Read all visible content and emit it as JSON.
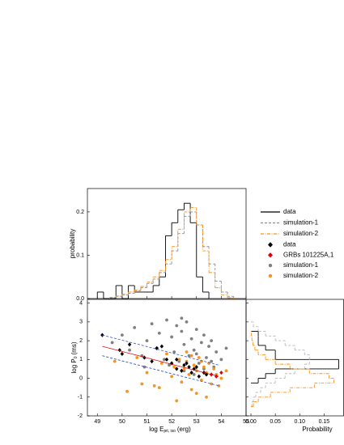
{
  "chart_data": [
    {
      "type": "histogram",
      "orientation": "vertical",
      "y_label": "probability",
      "xlim": [
        48.6,
        55
      ],
      "ylim": [
        0,
        0.254
      ],
      "yticks": [
        {
          "value": 0,
          "label": "0.0"
        },
        0.1,
        0.2
      ],
      "series": [
        {
          "name": "data",
          "color": "#000000",
          "dash": "solid",
          "bins": [
            49.0,
            49.25,
            49.5,
            49.75,
            50.0,
            50.25,
            50.5,
            50.75,
            51.0,
            51.25,
            51.5,
            51.75,
            52.0,
            52.25,
            52.5,
            52.75,
            53.0,
            53.25,
            53.5
          ],
          "values": [
            0.015,
            0,
            0,
            0.03,
            0,
            0.03,
            0.015,
            0.015,
            0.015,
            0.03,
            0.05,
            0.145,
            0.175,
            0.205,
            0.22,
            0.175,
            0.05,
            0.015
          ]
        },
        {
          "name": "simulation-1",
          "color": "#8c8c9c",
          "dash": "dashed",
          "bins": [
            49.5,
            49.75,
            50.0,
            50.25,
            50.5,
            50.75,
            51.0,
            51.25,
            51.5,
            51.75,
            52.0,
            52.25,
            52.5,
            52.75,
            53.0,
            53.25,
            53.5,
            53.75,
            54.0,
            54.25,
            54.5
          ],
          "values": [
            0.002,
            0.005,
            0.008,
            0.012,
            0.018,
            0.025,
            0.035,
            0.045,
            0.06,
            0.08,
            0.11,
            0.15,
            0.19,
            0.2,
            0.17,
            0.12,
            0.08,
            0.04,
            0.015,
            0.005
          ]
        },
        {
          "name": "simulation-2",
          "color": "#f7931e",
          "dash": "dashdot",
          "bins": [
            49.5,
            49.75,
            50.0,
            50.25,
            50.5,
            50.75,
            51.0,
            51.25,
            51.5,
            51.75,
            52.0,
            52.25,
            52.5,
            52.75,
            53.0,
            53.25,
            53.5,
            53.75,
            54.0,
            54.25,
            54.5
          ],
          "values": [
            0.003,
            0.006,
            0.01,
            0.015,
            0.02,
            0.028,
            0.038,
            0.05,
            0.065,
            0.09,
            0.12,
            0.16,
            0.2,
            0.21,
            0.17,
            0.11,
            0.06,
            0.025,
            0.008,
            0.002
          ]
        }
      ]
    },
    {
      "type": "scatter",
      "x_label": {
        "main": "log E",
        "sub": "jet, iso",
        "unit": "(erg)"
      },
      "y_label": {
        "main": "log P",
        "sub": "0",
        "unit": "(ms)"
      },
      "xlim": [
        48.6,
        55
      ],
      "ylim": [
        -2,
        4.2
      ],
      "xticks": [
        49,
        50,
        51,
        52,
        53,
        54,
        55
      ],
      "yticks": [
        -2,
        -1,
        0,
        1,
        2,
        3,
        4
      ],
      "series": [
        {
          "name": "simulation-1",
          "color": "#808080",
          "marker": "circle",
          "x": [
            49.6,
            50.0,
            50.3,
            50.5,
            50.8,
            51.0,
            51.2,
            51.4,
            51.5,
            51.7,
            51.8,
            52.0,
            52.1,
            52.2,
            52.3,
            52.4,
            52.5,
            52.6,
            52.7,
            52.8,
            52.9,
            53.0,
            53.1,
            53.2,
            53.3,
            53.4,
            53.5,
            53.6,
            53.7,
            53.8,
            54.0,
            54.2,
            52.5,
            52.9,
            53.3,
            51.9,
            52.4,
            53.0,
            53.6,
            50.9
          ],
          "values": [
            1.9,
            2.3,
            1.5,
            2.7,
            1.2,
            2.0,
            2.9,
            1.6,
            2.4,
            1.0,
            3.1,
            2.2,
            1.4,
            2.8,
            0.9,
            2.5,
            1.8,
            3.0,
            1.2,
            2.1,
            1.5,
            2.6,
            0.8,
            1.9,
            2.3,
            1.1,
            1.7,
            2.0,
            0.6,
            1.4,
            1.0,
            1.6,
            0.4,
            0.2,
            0.5,
            0.7,
            3.2,
            1.3,
            0.9,
            0.6
          ]
        },
        {
          "name": "simulation-2",
          "color": "#f7931e",
          "marker": "circle",
          "x": [
            49.7,
            50.2,
            50.6,
            51.0,
            51.3,
            51.6,
            51.8,
            52.0,
            52.1,
            52.3,
            52.4,
            52.5,
            52.6,
            52.7,
            52.8,
            52.9,
            53.0,
            53.1,
            53.2,
            53.3,
            53.4,
            53.5,
            53.6,
            53.7,
            53.8,
            54.0,
            54.2,
            52.2,
            52.6,
            53.0,
            53.4,
            51.5,
            50.8,
            52.8,
            53.2,
            53.9
          ],
          "values": [
            0.9,
            -0.7,
            1.1,
            0.3,
            -0.4,
            0.8,
            1.3,
            0.1,
            0.6,
            1.0,
            -0.2,
            0.5,
            0.9,
            0.2,
            -0.6,
            0.7,
            0.4,
            1.1,
            -0.1,
            0.6,
            0.3,
            0.8,
            -0.3,
            0.5,
            0.2,
            0.0,
            0.4,
            -1.2,
            1.4,
            -0.8,
            -1.0,
            -0.5,
            -0.3,
            1.2,
            0.9,
            -0.4
          ]
        },
        {
          "name": "data",
          "color": "#000000",
          "marker": "diamond",
          "x": [
            49.2,
            49.9,
            50.0,
            50.3,
            50.9,
            51.2,
            51.6,
            51.8,
            52.0,
            52.2,
            52.4,
            52.5,
            52.7,
            52.8,
            52.9,
            53.0,
            53.1,
            53.3,
            52.6,
            52.2,
            53.4,
            51.4
          ],
          "values": [
            2.3,
            1.5,
            1.3,
            1.8,
            1.1,
            0.9,
            1.7,
            1.0,
            0.8,
            0.5,
            0.4,
            0.7,
            0.6,
            0.3,
            0.5,
            0.6,
            0.1,
            0.3,
            0.8,
            1.0,
            0.2,
            1.6
          ]
        },
        {
          "name": "GRBs 101225A,1",
          "color": "#e00000",
          "marker": "diamond",
          "x": [
            53.6,
            53.8,
            54.0
          ],
          "values": [
            0.2,
            0.1,
            0.3
          ]
        }
      ],
      "lines": [
        {
          "color": "#e00000",
          "dash": "solid",
          "x": [
            49.2,
            53.9
          ],
          "y": [
            1.7,
            0.1
          ]
        },
        {
          "color": "#3050c0",
          "dash": "dashed",
          "x": [
            49.2,
            53.9
          ],
          "y": [
            2.3,
            0.7
          ]
        },
        {
          "color": "#3050c0",
          "dash": "dashed",
          "x": [
            49.2,
            53.9
          ],
          "y": [
            1.2,
            -0.4
          ]
        }
      ]
    },
    {
      "type": "histogram",
      "orientation": "horizontal",
      "x_label": "Probability",
      "xlim": [
        -0.01,
        0.19
      ],
      "ylim": [
        -2,
        4.2
      ],
      "xticks": [
        {
          "value": 0,
          "label": "0.00"
        },
        0.05,
        {
          "value": 0.1,
          "label": "0.10"
        },
        0.15
      ],
      "series": [
        {
          "name": "data",
          "color": "#000000",
          "dash": "solid",
          "bins": [
            -0.25,
            0,
            0.25,
            0.5,
            0.75,
            1.0,
            1.25,
            1.5,
            1.75,
            2.0,
            2.25,
            2.5
          ],
          "values": [
            0.015,
            0.03,
            0.05,
            0.18,
            0.18,
            0.05,
            0.05,
            0.03,
            0.015,
            0.015,
            0.015
          ]
        },
        {
          "name": "simulation-1",
          "color": "#b8b8c4",
          "dash": "dashed",
          "bins": [
            -1.5,
            -1.25,
            -1.0,
            -0.75,
            -0.5,
            -0.25,
            0,
            0.25,
            0.5,
            0.75,
            1.0,
            1.25,
            1.5,
            1.75,
            2.0,
            2.25,
            2.5,
            2.75,
            3.0
          ],
          "values": [
            0.002,
            0.005,
            0.01,
            0.02,
            0.03,
            0.05,
            0.07,
            0.09,
            0.11,
            0.12,
            0.12,
            0.11,
            0.09,
            0.07,
            0.05,
            0.03,
            0.015,
            0.005
          ]
        },
        {
          "name": "simulation-2",
          "color": "#f7931e",
          "dash": "dashdot",
          "bins": [
            -1.5,
            -1.25,
            -1.0,
            -0.75,
            -0.5,
            -0.25,
            0,
            0.25,
            0.5,
            0.75,
            1.0,
            1.25,
            1.5,
            1.75,
            2.0,
            2.25,
            2.5
          ],
          "values": [
            0.005,
            0.015,
            0.04,
            0.08,
            0.13,
            0.17,
            0.16,
            0.12,
            0.08,
            0.05,
            0.03,
            0.015,
            0.008,
            0.004,
            0.002,
            0.001
          ]
        }
      ]
    }
  ]
}
